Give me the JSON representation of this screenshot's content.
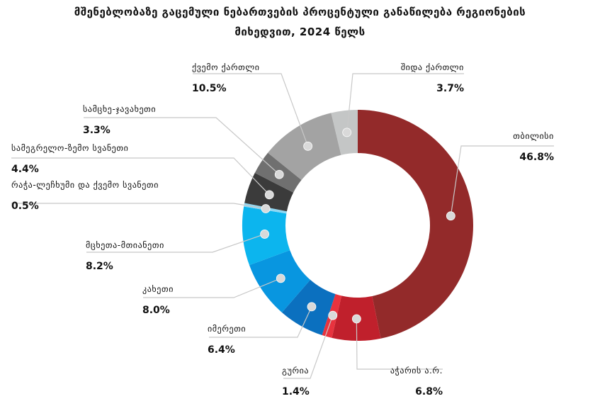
{
  "chart_data": {
    "type": "pie",
    "variant": "donut",
    "title_line1": "მშენებლობაზე გაცემული ნებართვების პროცენტული განაწილება რეგიონების",
    "title_line2": "მიხედვით, 2024 წელს",
    "slices": [
      {
        "name": "თბილისი",
        "value": 46.8,
        "label": "46.8%",
        "color": "#932a2a"
      },
      {
        "name": "აჭარის ა.რ.",
        "value": 6.8,
        "label": "6.8%",
        "color": "#c0202c"
      },
      {
        "name": "გურია",
        "value": 1.4,
        "label": "1.4%",
        "color": "#e8333e"
      },
      {
        "name": "იმერეთი",
        "value": 6.4,
        "label": "6.4%",
        "color": "#0b70bf"
      },
      {
        "name": "კახეთი",
        "value": 8.0,
        "label": "8.0%",
        "color": "#0896e0"
      },
      {
        "name": "მცხეთა-მთიანეთი",
        "value": 8.2,
        "label": "8.2%",
        "color": "#0cb5ee"
      },
      {
        "name": "რაჭა-ლეჩხუმი და ქვემო სვანეთი",
        "value": 0.5,
        "label": "0.5%",
        "color": "#8fd7f2"
      },
      {
        "name": "სამეგრელო-ზემო სვანეთი",
        "value": 4.4,
        "label": "4.4%",
        "color": "#3b3b3b"
      },
      {
        "name": "სამცხე-ჯავახეთი",
        "value": 3.3,
        "label": "3.3%",
        "color": "#707070"
      },
      {
        "name": "ქვემო ქართლი",
        "value": 10.5,
        "label": "10.5%",
        "color": "#a3a3a3"
      },
      {
        "name": "შიდა ქართლი",
        "value": 3.7,
        "label": "3.7%",
        "color": "#c4c6c6"
      }
    ]
  }
}
